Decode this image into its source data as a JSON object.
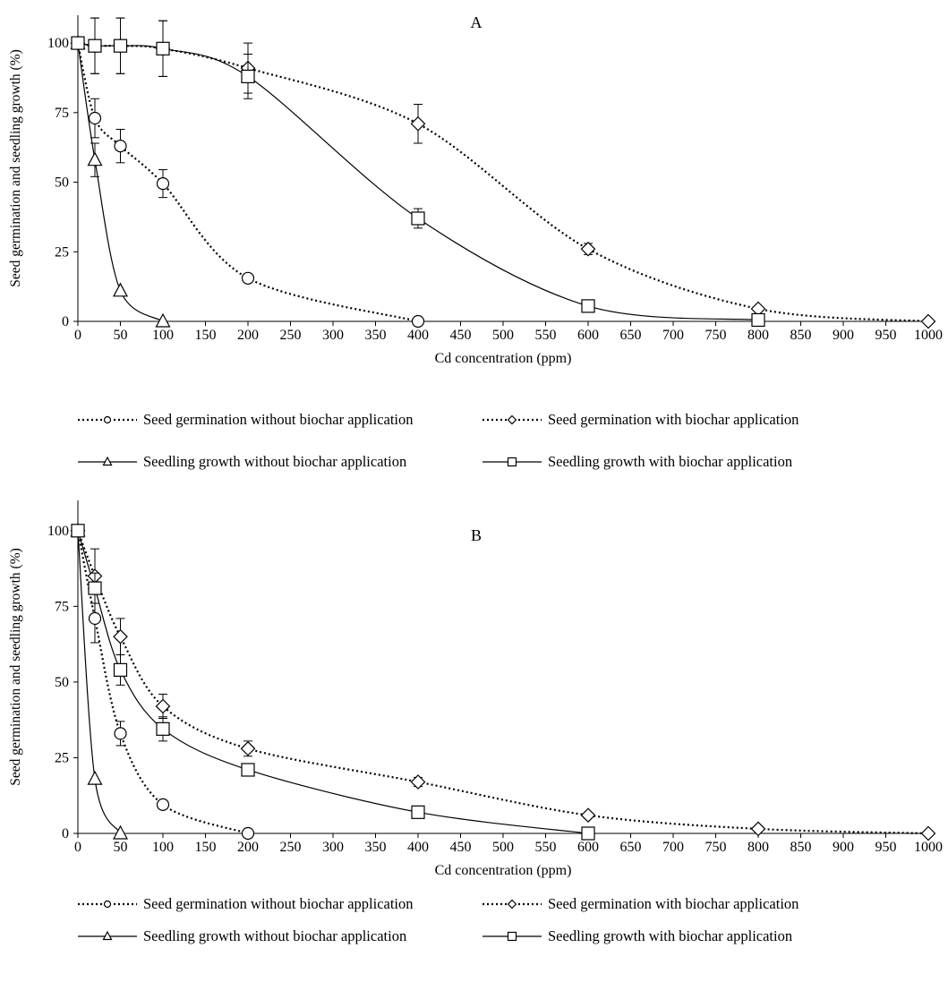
{
  "chart_data": [
    {
      "type": "line",
      "panel_label": "A",
      "xlabel": "Cd concentration (ppm)",
      "ylabel": "Seed germination and seedling growth (%)",
      "xlim": [
        0,
        1000
      ],
      "ylim": [
        0,
        110
      ],
      "x_ticks": [
        "0",
        "50",
        "100",
        "150",
        "200",
        "250",
        "300",
        "350",
        "400",
        "450",
        "500",
        "550",
        "600",
        "650",
        "700",
        "750",
        "800",
        "850",
        "900",
        "950",
        "1000"
      ],
      "y_ticks": [
        "0",
        "25",
        "50",
        "75",
        "100"
      ],
      "grid": false,
      "legend_position": "bottom",
      "series": [
        {
          "name": "Seed germination without biochar application",
          "marker": "circle",
          "line": "dotted",
          "x": [
            0,
            20,
            50,
            100,
            200,
            400
          ],
          "y": [
            100,
            73,
            63,
            49.5,
            15.5,
            0
          ],
          "err": [
            0,
            7,
            6,
            5,
            0,
            0
          ]
        },
        {
          "name": "Seed germination with biochar application",
          "marker": "diamond",
          "line": "dotted",
          "x": [
            0,
            20,
            50,
            100,
            200,
            400,
            600,
            800,
            1000
          ],
          "y": [
            100,
            99,
            99,
            98,
            91,
            71,
            26,
            4.5,
            0
          ],
          "err": [
            0,
            10,
            10,
            10,
            9,
            7,
            2,
            0,
            0
          ]
        },
        {
          "name": "Seedling growth without biochar application",
          "marker": "triangle",
          "line": "solid",
          "x": [
            0,
            20,
            50,
            100
          ],
          "y": [
            100,
            58,
            11,
            0
          ],
          "err": [
            0,
            6,
            0,
            0
          ]
        },
        {
          "name": "Seedling growth with biochar application",
          "marker": "square",
          "line": "solid",
          "x": [
            0,
            20,
            50,
            100,
            200,
            400,
            600,
            800
          ],
          "y": [
            100,
            99,
            99,
            98,
            88,
            37,
            5.5,
            0.5
          ],
          "err": [
            0,
            10,
            10,
            10,
            8,
            3.5,
            0,
            0
          ]
        }
      ]
    },
    {
      "type": "line",
      "panel_label": "B",
      "xlabel": "Cd concentration (ppm)",
      "ylabel": "Seed germination and seedling growth (%)",
      "xlim": [
        0,
        1000
      ],
      "ylim": [
        0,
        110
      ],
      "x_ticks": [
        "0",
        "50",
        "100",
        "150",
        "200",
        "250",
        "300",
        "350",
        "400",
        "450",
        "500",
        "550",
        "600",
        "650",
        "700",
        "750",
        "800",
        "850",
        "900",
        "950",
        "1000"
      ],
      "y_ticks": [
        "0",
        "25",
        "50",
        "75",
        "100"
      ],
      "grid": false,
      "legend_position": "bottom",
      "series": [
        {
          "name": "Seed germination without biochar application",
          "marker": "circle",
          "line": "dotted",
          "x": [
            0,
            20,
            50,
            100,
            200
          ],
          "y": [
            100,
            71,
            33,
            9.5,
            0
          ],
          "err": [
            0,
            8,
            4,
            0,
            0
          ]
        },
        {
          "name": "Seed germination with biochar application",
          "marker": "diamond",
          "line": "dotted",
          "x": [
            0,
            20,
            50,
            100,
            200,
            400,
            600,
            800,
            1000
          ],
          "y": [
            100,
            85,
            65,
            42,
            28,
            17,
            6,
            1.5,
            0
          ],
          "err": [
            0,
            9,
            6,
            4,
            2.5,
            1.5,
            0,
            0,
            0
          ]
        },
        {
          "name": "Seedling growth without biochar application",
          "marker": "triangle",
          "line": "solid",
          "x": [
            0,
            20,
            50
          ],
          "y": [
            100,
            18,
            0
          ],
          "err": [
            0,
            0,
            0
          ]
        },
        {
          "name": "Seedling growth with biochar application",
          "marker": "square",
          "line": "solid",
          "x": [
            0,
            20,
            50,
            100,
            200,
            400,
            600
          ],
          "y": [
            100,
            81,
            54,
            34.5,
            21,
            7,
            0
          ],
          "err": [
            0,
            5,
            5,
            4,
            0,
            0,
            0
          ]
        }
      ]
    }
  ]
}
